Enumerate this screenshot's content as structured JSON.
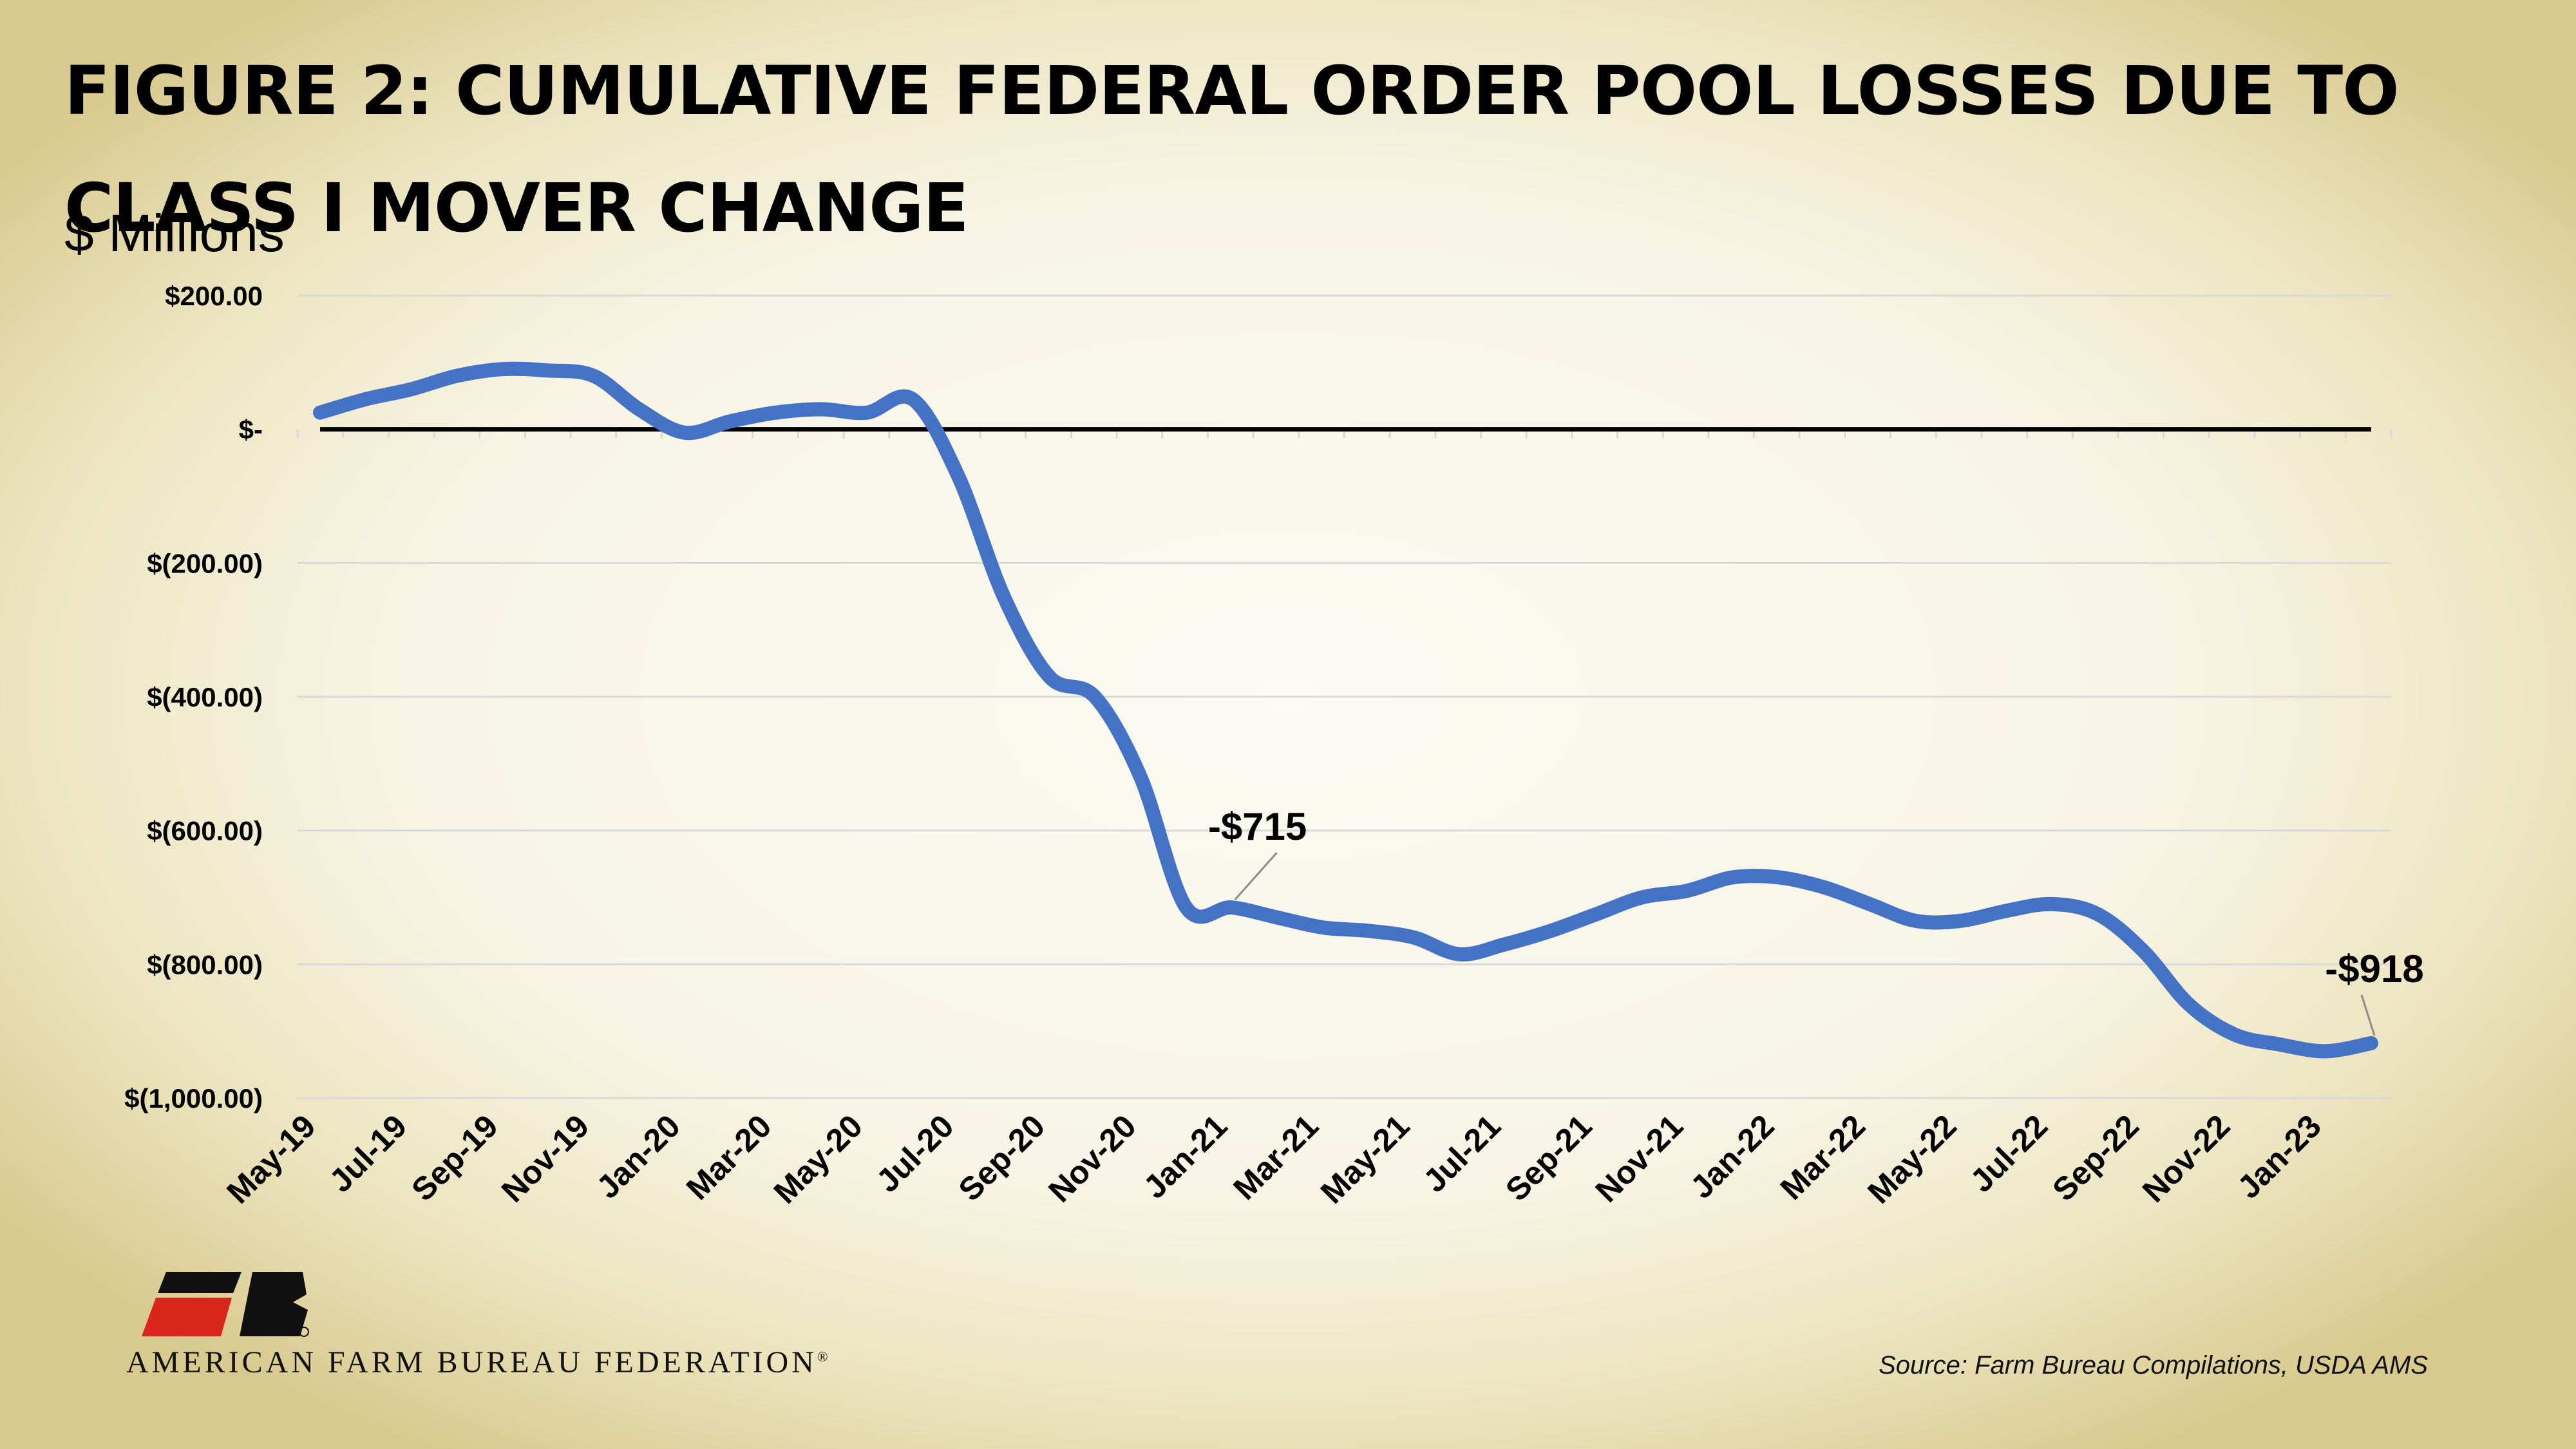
{
  "header": {
    "title": "Figure 2: Cumulative Federal Order Pool Losses Due to Class I Mover Change",
    "units": "$ Millions"
  },
  "footer": {
    "logo_text": "AMERICAN FARM BUREAU FEDERATION",
    "logo_mark": "®",
    "source": "Source: Farm Bureau Compilations, USDA AMS"
  },
  "colors": {
    "line": "#4472c4",
    "zero_line": "#000000",
    "grid": "#d9d9d9"
  },
  "icons": {
    "logo": "afbf-fb-logo"
  },
  "chart_data": {
    "type": "line",
    "ylim": [
      -1000,
      200
    ],
    "yticks": [
      200,
      0,
      -200,
      -400,
      -600,
      -800,
      -1000
    ],
    "ytick_labels": [
      "$200.00",
      "$-",
      "$(200.00)",
      "$(400.00)",
      "$(600.00)",
      "$(800.00)",
      "$(1,000.00)"
    ],
    "grid": true,
    "legend": "none",
    "x_tick_labels": [
      "May-19",
      "Jul-19",
      "Sep-19",
      "Nov-19",
      "Jan-20",
      "Mar-20",
      "May-20",
      "Jul-20",
      "Sep-20",
      "Nov-20",
      "Jan-21",
      "Mar-21",
      "May-21",
      "Jul-21",
      "Sep-21",
      "Nov-21",
      "Jan-22",
      "Mar-22",
      "May-22",
      "Jul-22",
      "Sep-22",
      "Nov-22",
      "Jan-23"
    ],
    "x": [
      "May-19",
      "Jun-19",
      "Jul-19",
      "Aug-19",
      "Sep-19",
      "Oct-19",
      "Nov-19",
      "Dec-19",
      "Jan-20",
      "Feb-20",
      "Mar-20",
      "Apr-20",
      "May-20",
      "Jun-20",
      "Jul-20",
      "Aug-20",
      "Sep-20",
      "Oct-20",
      "Nov-20",
      "Dec-20",
      "Jan-21",
      "Feb-21",
      "Mar-21",
      "Apr-21",
      "May-21",
      "Jun-21",
      "Jul-21",
      "Aug-21",
      "Sep-21",
      "Oct-21",
      "Nov-21",
      "Dec-21",
      "Jan-22",
      "Feb-22",
      "Mar-22",
      "Apr-22",
      "May-22",
      "Jun-22",
      "Jul-22",
      "Aug-22",
      "Sep-22",
      "Oct-22",
      "Nov-22",
      "Dec-22",
      "Jan-23",
      "Feb-23"
    ],
    "series": [
      {
        "values": [
          25,
          45,
          60,
          80,
          90,
          88,
          80,
          30,
          -5,
          12,
          25,
          30,
          25,
          45,
          -70,
          -250,
          -370,
          -400,
          -520,
          -715,
          -715,
          -730,
          -745,
          -750,
          -760,
          -785,
          -770,
          -750,
          -725,
          -700,
          -690,
          -670,
          -670,
          -685,
          -710,
          -735,
          -735,
          -720,
          -710,
          -725,
          -780,
          -860,
          -905,
          -920,
          -930,
          -918
        ]
      }
    ],
    "annotations": [
      {
        "x": "Jan-21",
        "label": "-$715"
      },
      {
        "x": "Feb-23",
        "label": "-$918"
      }
    ]
  }
}
